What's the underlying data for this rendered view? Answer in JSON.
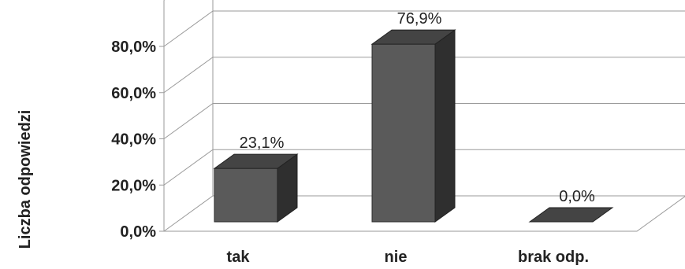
{
  "chart_data": {
    "type": "bar",
    "categories": [
      "tak",
      "nie",
      "brak odp."
    ],
    "values": [
      23.1,
      76.9,
      0.0
    ],
    "data_labels": [
      "23,1%",
      "76,9%",
      "0,0%"
    ],
    "ylabel": "Liczba odpowiedzi",
    "ylim": [
      0,
      100
    ],
    "yticks": [
      0,
      20,
      40,
      60,
      80
    ],
    "ytick_labels": [
      "0,0%",
      "20,0%",
      "40,0%",
      "60,0%",
      "80,0%"
    ],
    "legend": "none",
    "grid": true,
    "style": "3d-column",
    "bar_color": "#4a4a4a"
  }
}
